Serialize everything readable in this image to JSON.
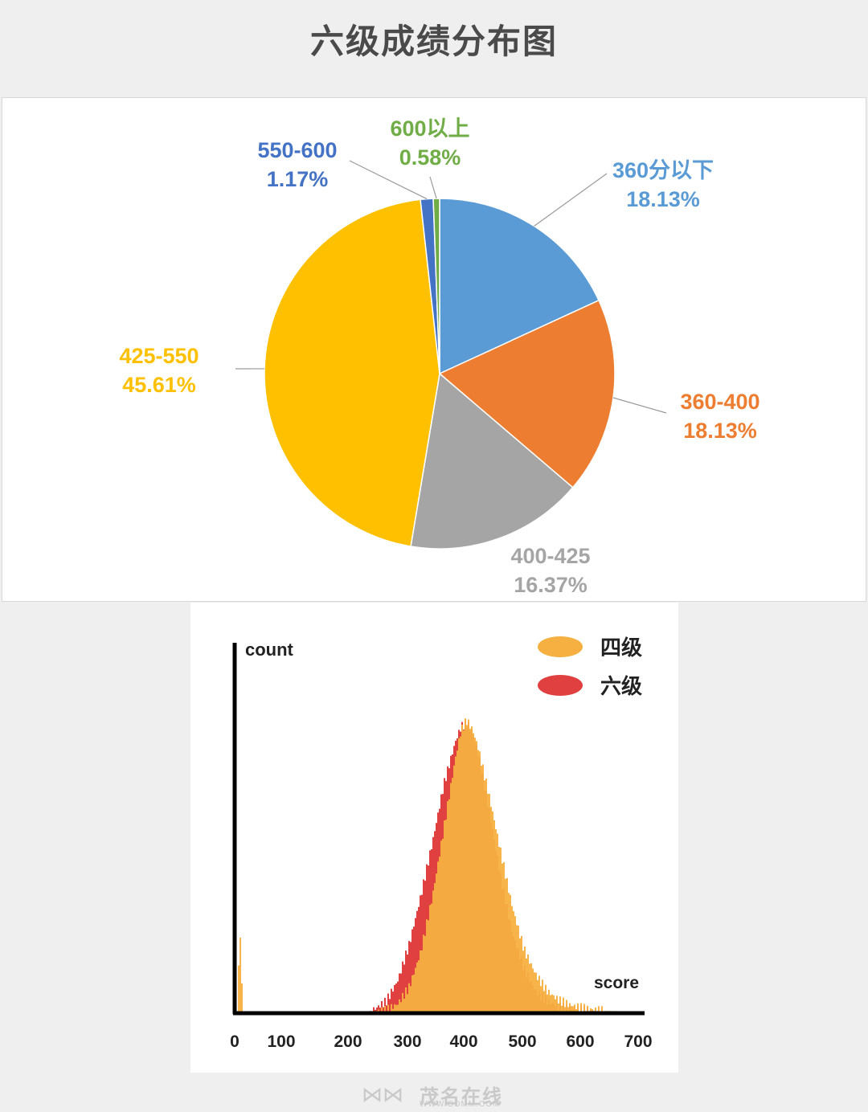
{
  "page": {
    "title": "六级成绩分布图",
    "watermark_brand": "茂名在线",
    "watermark_url": "WWW.GDMM.COM"
  },
  "chart_data": [
    {
      "type": "pie",
      "title": "",
      "slices": [
        {
          "label": "360分以下",
          "value": 18.13,
          "value_label": "18.13%",
          "color": "#5b9bd5"
        },
        {
          "label": "360-400",
          "value": 18.13,
          "value_label": "18.13%",
          "color": "#ed7d31"
        },
        {
          "label": "400-425",
          "value": 16.37,
          "value_label": "16.37%",
          "color": "#a5a5a5"
        },
        {
          "label": "425-550",
          "value": 45.61,
          "value_label": "45.61%",
          "color": "#ffc000"
        },
        {
          "label": "550-600",
          "value": 1.17,
          "value_label": "1.17%",
          "color": "#4472c4"
        },
        {
          "label": "600以上",
          "value": 0.58,
          "value_label": "0.58%",
          "color": "#70ad47"
        }
      ],
      "start": "12 o'clock",
      "direction": "clockwise"
    },
    {
      "type": "area",
      "xlabel": "score",
      "ylabel": "count",
      "xlim": [
        0,
        700
      ],
      "x_ticks": [
        "0",
        "100",
        "200",
        "300",
        "400",
        "500",
        "600",
        "700"
      ],
      "legend_position": "top-right",
      "series": [
        {
          "name": "四级",
          "color": "#f5b041",
          "x": [
            0,
            5,
            10,
            230,
            260,
            280,
            300,
            320,
            340,
            360,
            380,
            390,
            400,
            410,
            420,
            440,
            460,
            480,
            500,
            520,
            540,
            560,
            580,
            600,
            620,
            640,
            700
          ],
          "y": [
            0,
            6.5,
            0,
            0,
            0.1,
            0.6,
            1.9,
            4.6,
            8.8,
            14.1,
            19.5,
            21.7,
            22.5,
            21.8,
            20.4,
            16.5,
            12.2,
            8.0,
            4.8,
            2.9,
            1.6,
            0.9,
            0.5,
            0.3,
            0.15,
            0.05,
            0
          ]
        },
        {
          "name": "六级",
          "color": "#e04040",
          "x": [
            0,
            230,
            240,
            260,
            280,
            300,
            320,
            340,
            360,
            380,
            390,
            400,
            410,
            420,
            440,
            460,
            480,
            500,
            520,
            540,
            560,
            580,
            600,
            620,
            640,
            700
          ],
          "y": [
            0,
            0,
            0.2,
            0.8,
            2.4,
            5.2,
            8.9,
            13.0,
            17.5,
            20.8,
            22.0,
            22.3,
            21.6,
            20.0,
            15.4,
            10.2,
            6.0,
            3.3,
            1.6,
            0.8,
            0.4,
            0.2,
            0.1,
            0.05,
            0.02,
            0
          ]
        }
      ]
    }
  ]
}
